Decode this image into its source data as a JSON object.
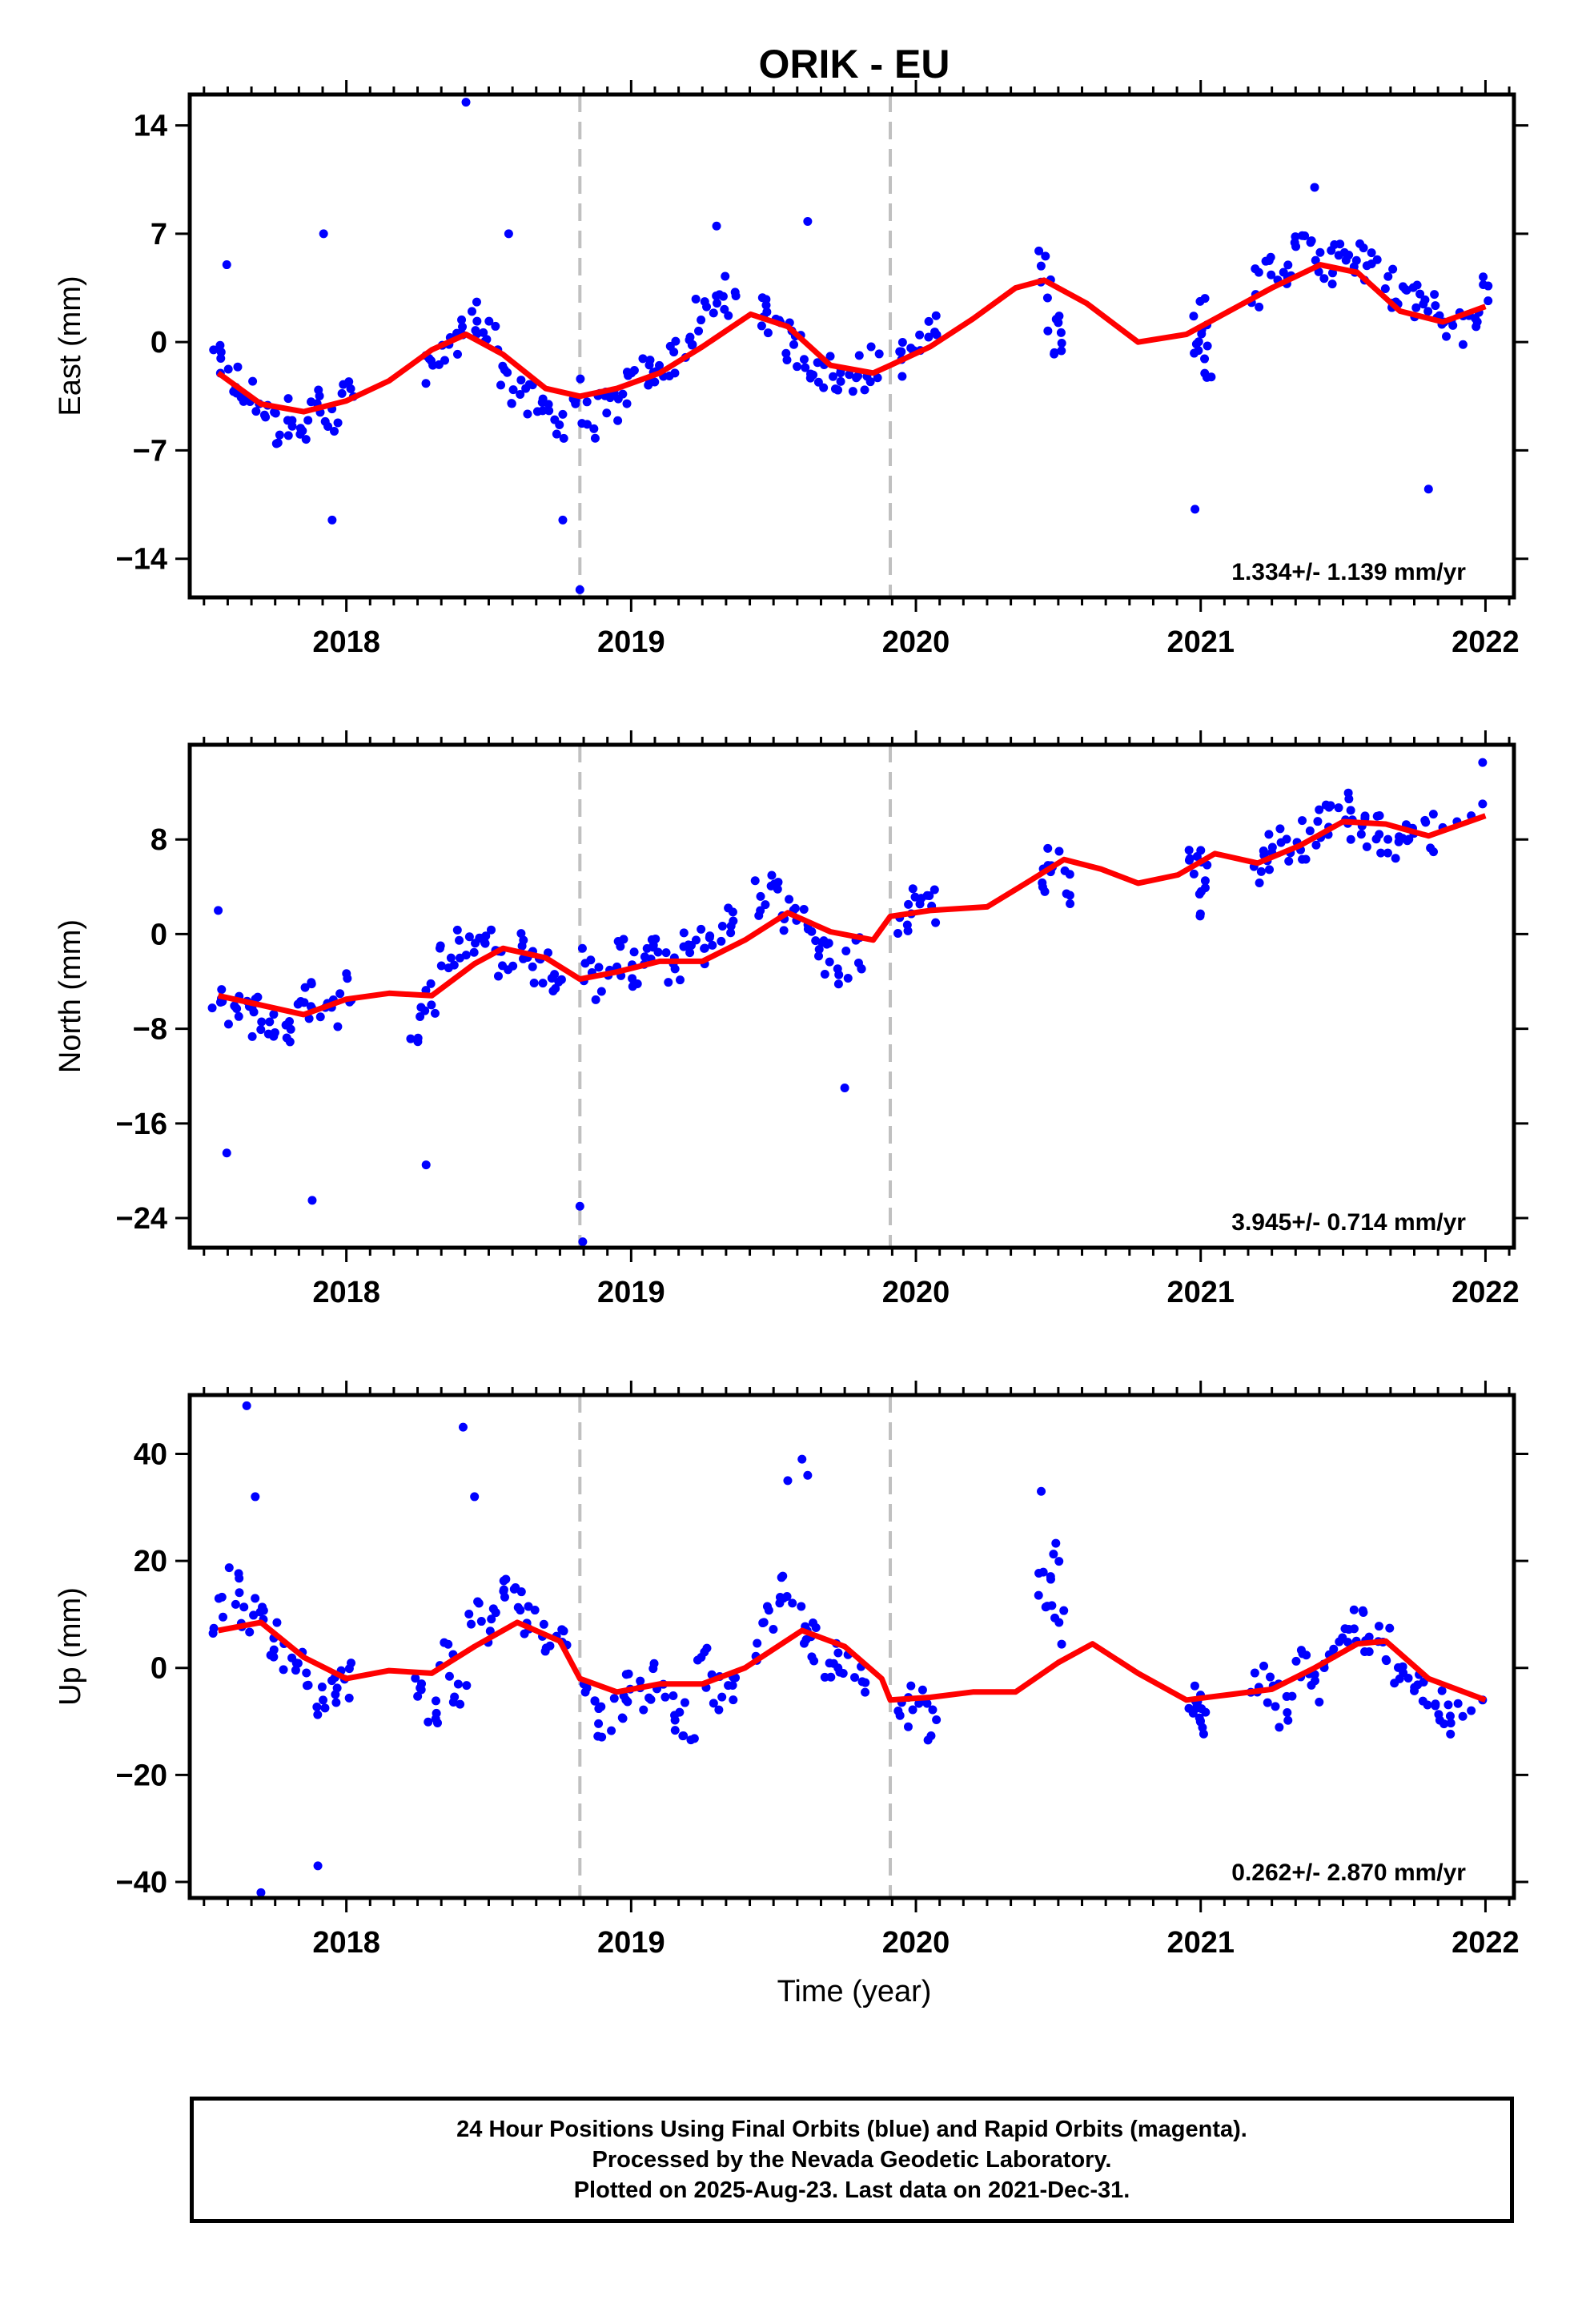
{
  "title": "ORIK - EU",
  "x_axis_label": "Time (year)",
  "x_ticks": [
    "2018",
    "2019",
    "2020",
    "2021",
    "2022"
  ],
  "colors": {
    "final_orbits": "#0000ff",
    "model": "#ff0000",
    "equipment_change": "#c0c0c0"
  },
  "footer": {
    "line1": "24 Hour Positions Using Final Orbits (blue) and Rapid Orbits (magenta).",
    "line2": "Processed by the Nevada Geodetic Laboratory.",
    "line3": "Plotted on 2025-Aug-23. Last data on 2021-Dec-31."
  },
  "chart_data": [
    {
      "type": "scatter",
      "ylabel": "East (mm)",
      "rate": "1.334+/- 1.139 mm/yr",
      "xlim": [
        2017.45,
        2022.1
      ],
      "ylim": [
        -16.5,
        16
      ],
      "yticks": [
        "14",
        "7",
        "0",
        "-7",
        "-14"
      ],
      "ytick_values": [
        14,
        7,
        0,
        -7,
        -14
      ],
      "vlines": [
        2018.82,
        2019.91
      ],
      "series": [
        {
          "role": "daily-positions",
          "x": [
            2017.55,
            2017.6,
            2017.65,
            2017.7,
            2017.75,
            2017.8,
            2017.85,
            2017.9,
            2017.95,
            2018.0,
            2018.3,
            2018.35,
            2018.4,
            2018.45,
            2018.5,
            2018.55,
            2018.6,
            2018.65,
            2018.7,
            2018.75,
            2018.8,
            2018.85,
            2018.9,
            2018.95,
            2019.0,
            2019.05,
            2019.1,
            2019.15,
            2019.2,
            2019.25,
            2019.3,
            2019.35,
            2019.45,
            2019.5,
            2019.55,
            2019.6,
            2019.65,
            2019.7,
            2019.75,
            2019.8,
            2019.85,
            2019.95,
            2020.0,
            2020.05,
            2020.45,
            2020.48,
            2020.5,
            2020.98,
            2021.0,
            2021.02,
            2021.2,
            2021.25,
            2021.3,
            2021.35,
            2021.4,
            2021.45,
            2021.5,
            2021.55,
            2021.6,
            2021.65,
            2021.7,
            2021.75,
            2021.8,
            2021.85,
            2021.9,
            2021.95,
            2021.99,
            2017.58,
            2017.92,
            2018.42,
            2018.57,
            2019.3,
            2019.62,
            2021.4,
            2017.95,
            2018.76,
            2018.82,
            2020.98,
            2021.8
          ],
          "y": [
            -1.5,
            -2.5,
            -3.5,
            -4.0,
            -5.5,
            -4.8,
            -5.0,
            -4.0,
            -5.5,
            -3.5,
            -2.0,
            -1.0,
            0.5,
            1.5,
            0.5,
            -1.5,
            -3.0,
            -4.0,
            -4.5,
            -5.0,
            -3.5,
            -5.0,
            -4.5,
            -4.0,
            -3.0,
            -2.0,
            -1.5,
            -1.0,
            0.0,
            1.5,
            2.5,
            3.0,
            2.0,
            1.5,
            0.0,
            -0.5,
            -1.5,
            -2.0,
            -2.5,
            -2.0,
            -1.5,
            -1.0,
            -0.5,
            0.5,
            5.0,
            2.0,
            -0.5,
            0.5,
            2.0,
            -1.0,
            3.5,
            4.5,
            5.0,
            6.0,
            5.5,
            5.0,
            6.0,
            5.5,
            4.5,
            3.5,
            3.0,
            2.5,
            2.0,
            1.5,
            1.0,
            2.0,
            3.0,
            5.0,
            7.0,
            15.5,
            7.0,
            7.5,
            7.8,
            10.0,
            -11.5,
            -11.5,
            -16.0,
            -10.8,
            -9.5
          ]
        },
        {
          "role": "fit-model",
          "x": [
            2017.55,
            2017.7,
            2017.85,
            2018.0,
            2018.15,
            2018.3,
            2018.42,
            2018.55,
            2018.7,
            2018.82,
            2018.95,
            2019.1,
            2019.25,
            2019.42,
            2019.55,
            2019.7,
            2019.85,
            2019.91,
            2020.05,
            2020.2,
            2020.35,
            2020.45,
            2020.6,
            2020.78,
            2020.95,
            2021.1,
            2021.25,
            2021.42,
            2021.55,
            2021.7,
            2021.85,
            2022.0
          ],
          "y": [
            -2.0,
            -4.0,
            -4.5,
            -3.8,
            -2.5,
            -0.5,
            0.5,
            -0.8,
            -3.0,
            -3.5,
            -3.0,
            -2.0,
            -0.3,
            1.8,
            1.0,
            -1.5,
            -2.0,
            -1.5,
            -0.3,
            1.5,
            3.5,
            4.0,
            2.5,
            0.0,
            0.5,
            2.0,
            3.5,
            5.0,
            4.5,
            2.0,
            1.3,
            2.3
          ]
        }
      ]
    },
    {
      "type": "scatter",
      "ylabel": "North (mm)",
      "rate": "3.945+/- 0.714 mm/yr",
      "xlim": [
        2017.45,
        2022.1
      ],
      "ylim": [
        -26.5,
        16
      ],
      "yticks": [
        "8",
        "0",
        "-8",
        "-16",
        "-24"
      ],
      "ytick_values": [
        8,
        0,
        -8,
        -16,
        -24
      ],
      "vlines": [
        2018.82,
        2019.91
      ],
      "series": [
        {
          "role": "daily-positions",
          "x": [
            2017.55,
            2017.6,
            2017.65,
            2017.7,
            2017.75,
            2017.8,
            2017.85,
            2017.9,
            2017.95,
            2018.0,
            2018.25,
            2018.3,
            2018.35,
            2018.4,
            2018.45,
            2018.5,
            2018.55,
            2018.6,
            2018.65,
            2018.7,
            2018.75,
            2018.85,
            2018.9,
            2018.95,
            2019.0,
            2019.05,
            2019.1,
            2019.15,
            2019.2,
            2019.25,
            2019.3,
            2019.35,
            2019.45,
            2019.5,
            2019.55,
            2019.6,
            2019.65,
            2019.7,
            2019.75,
            2019.8,
            2019.95,
            2020.0,
            2020.05,
            2020.45,
            2020.48,
            2020.52,
            2020.98,
            2021.0,
            2021.02,
            2021.2,
            2021.25,
            2021.3,
            2021.35,
            2021.4,
            2021.45,
            2021.5,
            2021.55,
            2021.6,
            2021.65,
            2021.7,
            2021.75,
            2021.8,
            2021.85,
            2021.9,
            2021.95,
            2021.99,
            2017.58,
            2017.88,
            2018.28,
            2018.82,
            2018.83,
            2019.75,
            2021.99,
            2017.55
          ],
          "y": [
            -5.0,
            -6.0,
            -7.0,
            -6.5,
            -7.5,
            -8.0,
            -6.0,
            -5.5,
            -6.5,
            -4.5,
            -7.5,
            -5.0,
            -2.0,
            -1.0,
            0.0,
            -1.0,
            -2.0,
            -1.5,
            -2.5,
            -3.0,
            -3.5,
            -2.5,
            -4.0,
            -2.0,
            -3.0,
            -1.5,
            -2.0,
            -2.5,
            -1.5,
            -1.0,
            -0.5,
            1.0,
            3.0,
            4.0,
            2.0,
            1.0,
            -1.0,
            -2.0,
            -3.0,
            -1.5,
            1.0,
            3.0,
            2.5,
            5.0,
            6.0,
            4.0,
            7.0,
            5.0,
            3.0,
            6.0,
            7.0,
            7.5,
            8.0,
            9.0,
            10.0,
            10.5,
            9.5,
            9.0,
            8.5,
            8.0,
            9.0,
            8.5,
            9.0,
            9.5,
            10.0,
            11.0,
            -18.5,
            -22.5,
            -19.5,
            -23.0,
            -26.0,
            -13.0,
            14.5,
            2.0
          ]
        },
        {
          "role": "fit-model",
          "x": [
            2017.55,
            2017.7,
            2017.85,
            2018.0,
            2018.15,
            2018.3,
            2018.45,
            2018.55,
            2018.7,
            2018.82,
            2018.95,
            2019.1,
            2019.25,
            2019.4,
            2019.55,
            2019.7,
            2019.85,
            2019.91,
            2020.05,
            2020.25,
            2020.4,
            2020.52,
            2020.65,
            2020.78,
            2020.92,
            2021.05,
            2021.2,
            2021.35,
            2021.5,
            2021.65,
            2021.8,
            2022.0
          ],
          "y": [
            -5.2,
            -6.0,
            -6.8,
            -5.5,
            -5.0,
            -5.2,
            -2.5,
            -1.2,
            -2.0,
            -3.8,
            -3.2,
            -2.3,
            -2.3,
            -0.5,
            1.8,
            0.2,
            -0.5,
            1.5,
            2.0,
            2.3,
            4.5,
            6.3,
            5.5,
            4.3,
            5.0,
            6.8,
            6.0,
            7.5,
            9.5,
            9.3,
            8.3,
            10.0
          ]
        }
      ]
    },
    {
      "type": "scatter",
      "ylabel": "Up (mm)",
      "rate": "0.262+/- 2.870 mm/yr",
      "xlim": [
        2017.45,
        2022.1
      ],
      "ylim": [
        -43,
        51
      ],
      "yticks": [
        "40",
        "20",
        "0",
        "-20",
        "-40"
      ],
      "ytick_values": [
        40,
        20,
        0,
        -20,
        -40
      ],
      "vlines": [
        2018.82,
        2019.91
      ],
      "series": [
        {
          "role": "daily-positions",
          "x": [
            2017.55,
            2017.6,
            2017.65,
            2017.7,
            2017.75,
            2017.8,
            2017.85,
            2017.9,
            2017.95,
            2018.0,
            2018.25,
            2018.3,
            2018.35,
            2018.4,
            2018.45,
            2018.5,
            2018.55,
            2018.6,
            2018.65,
            2018.7,
            2018.75,
            2018.85,
            2018.9,
            2018.95,
            2019.0,
            2019.05,
            2019.1,
            2019.15,
            2019.2,
            2019.25,
            2019.3,
            2019.35,
            2019.45,
            2019.5,
            2019.55,
            2019.6,
            2019.65,
            2019.7,
            2019.75,
            2019.8,
            2019.95,
            2020.0,
            2020.05,
            2020.45,
            2020.48,
            2020.5,
            2020.98,
            2021.0,
            2021.02,
            2021.2,
            2021.25,
            2021.3,
            2021.35,
            2021.4,
            2021.45,
            2021.5,
            2021.55,
            2021.6,
            2021.65,
            2021.7,
            2021.75,
            2021.8,
            2021.85,
            2021.9,
            2021.95,
            2021.99,
            2017.65,
            2017.68,
            2017.9,
            2018.41,
            2018.45,
            2019.55,
            2019.6,
            2019.62,
            2020.44,
            2017.7
          ],
          "y": [
            10.0,
            15.0,
            8.0,
            12.0,
            5.0,
            2.0,
            0.0,
            -5.0,
            -3.0,
            -2.0,
            -5.0,
            -8.0,
            2.0,
            -5.0,
            10.0,
            8.0,
            15.0,
            12.0,
            10.0,
            5.0,
            8.0,
            -5.0,
            -10.0,
            -8.0,
            -3.0,
            -5.0,
            -2.0,
            -8.0,
            -10.0,
            0.0,
            -5.0,
            -3.0,
            5.0,
            10.0,
            15.0,
            8.0,
            5.0,
            2.0,
            0.0,
            -3.0,
            -8.0,
            -5.0,
            -10.0,
            15.0,
            20.0,
            8.0,
            -5.0,
            -8.0,
            -10.0,
            -3.0,
            -5.0,
            -8.0,
            0.0,
            -3.0,
            2.0,
            5.0,
            8.0,
            3.0,
            5.0,
            0.0,
            -3.0,
            -5.0,
            -8.0,
            -10.0,
            -8.0,
            -6.0,
            49.0,
            32.0,
            -37.0,
            45.0,
            32.0,
            35.0,
            39.0,
            36.0,
            33.0,
            -42.0
          ]
        },
        {
          "role": "fit-model",
          "x": [
            2017.55,
            2017.7,
            2017.85,
            2018.0,
            2018.15,
            2018.3,
            2018.45,
            2018.6,
            2018.75,
            2018.82,
            2018.95,
            2019.1,
            2019.25,
            2019.4,
            2019.6,
            2019.75,
            2019.88,
            2019.91,
            2020.05,
            2020.2,
            2020.35,
            2020.5,
            2020.62,
            2020.78,
            2020.95,
            2021.1,
            2021.25,
            2021.4,
            2021.55,
            2021.65,
            2021.8,
            2022.0
          ],
          "y": [
            7.0,
            8.5,
            2.0,
            -2.0,
            -0.5,
            -1.0,
            4.0,
            8.5,
            5.0,
            -2.0,
            -4.5,
            -3.0,
            -3.0,
            0.0,
            7.0,
            4.0,
            -2.0,
            -6.0,
            -5.5,
            -4.5,
            -4.5,
            1.0,
            4.5,
            -1.0,
            -6.0,
            -5.0,
            -4.0,
            0.0,
            4.5,
            5.0,
            -2.0,
            -6.0
          ]
        }
      ]
    }
  ]
}
